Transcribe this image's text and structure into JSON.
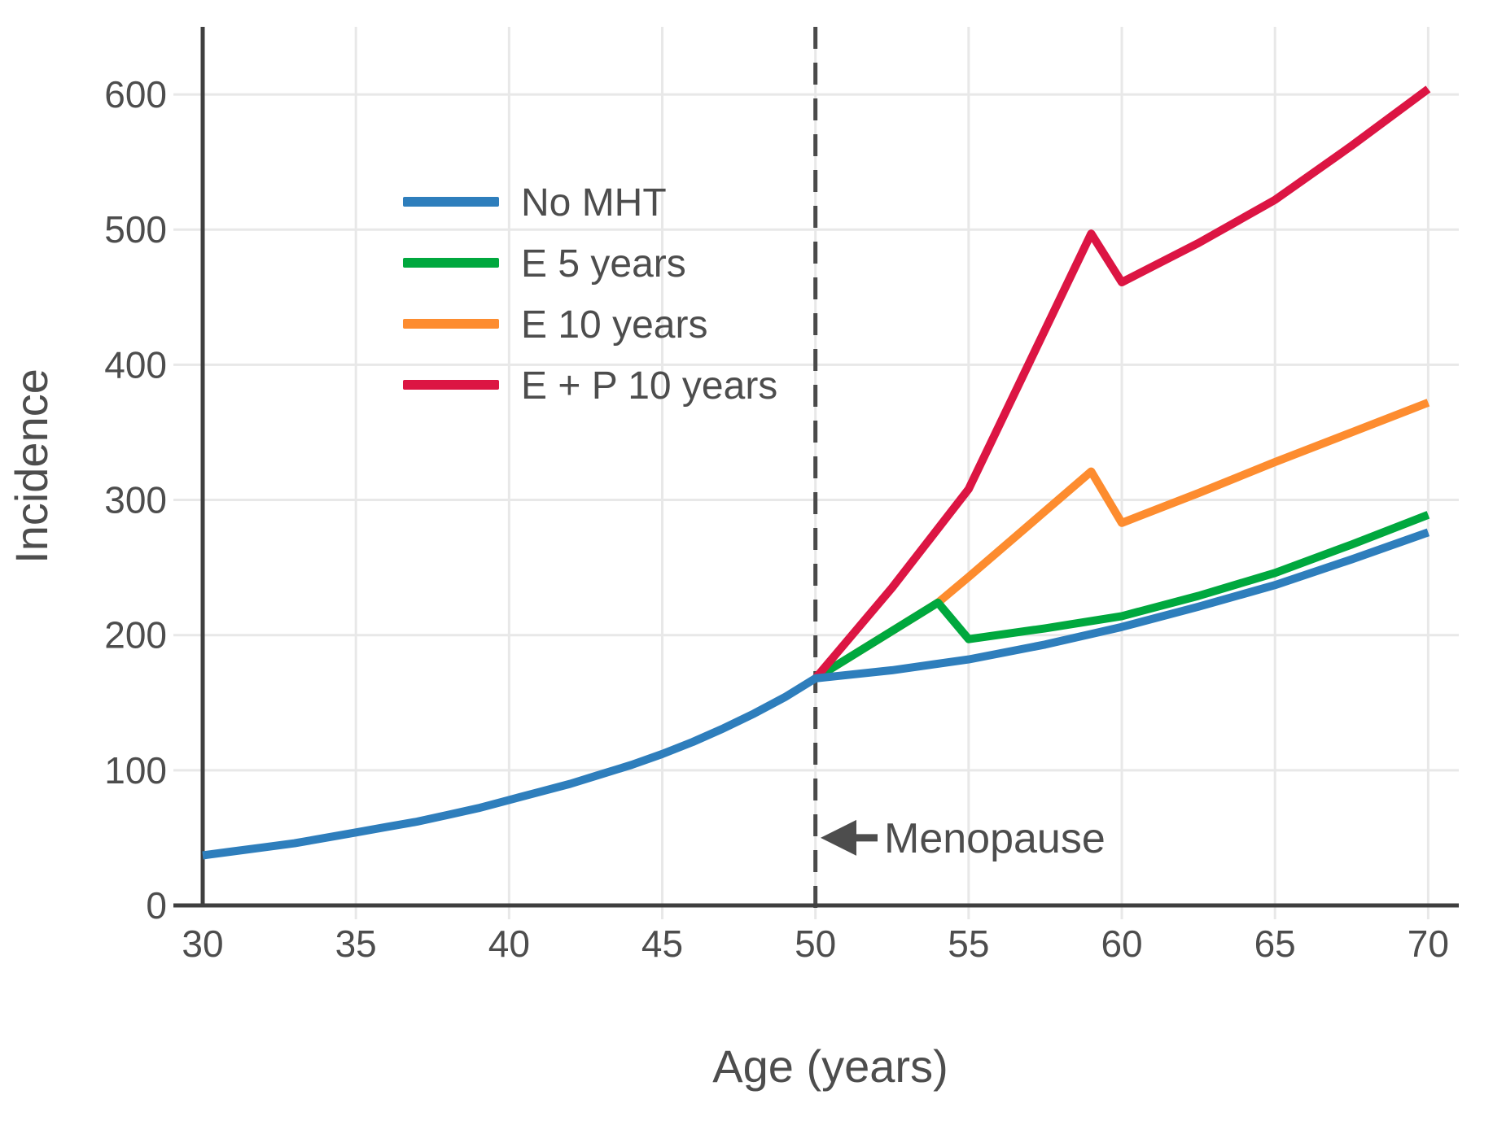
{
  "chart_data": {
    "type": "line",
    "title": "",
    "xlabel": "Age (years)",
    "ylabel": "Incidence",
    "xlim": [
      30,
      71
    ],
    "ylim": [
      0,
      650
    ],
    "xticks": [
      30,
      35,
      40,
      45,
      50,
      55,
      60,
      65,
      70
    ],
    "yticks": [
      0,
      100,
      200,
      300,
      400,
      500,
      600
    ],
    "grid": true,
    "legend_position": "upper left inside",
    "colors": {
      "grid": "#e8e8e8",
      "axis": "#3f3f3f",
      "text": "#4d4d4d",
      "dashed_line": "#4a4a4a"
    },
    "vline": {
      "x": 50,
      "style": "dashed"
    },
    "annotation": {
      "text": "Menopause",
      "arrow": "left-arrow-icon",
      "x": 50,
      "y": 50
    },
    "draw_order": [
      2,
      1,
      3,
      0
    ],
    "series": [
      {
        "name": "No MHT",
        "color": "#2e7ebc",
        "points": [
          [
            30,
            37
          ],
          [
            31,
            40
          ],
          [
            32,
            43
          ],
          [
            33,
            46
          ],
          [
            34,
            50
          ],
          [
            35,
            54
          ],
          [
            36,
            58
          ],
          [
            37,
            62
          ],
          [
            38,
            67
          ],
          [
            39,
            72
          ],
          [
            40,
            78
          ],
          [
            41,
            84
          ],
          [
            42,
            90
          ],
          [
            43,
            97
          ],
          [
            44,
            104
          ],
          [
            45,
            112
          ],
          [
            46,
            121
          ],
          [
            47,
            131
          ],
          [
            48,
            142
          ],
          [
            49,
            154
          ],
          [
            50,
            168
          ],
          [
            52.5,
            174
          ],
          [
            55,
            182
          ],
          [
            57.5,
            193
          ],
          [
            60,
            206
          ],
          [
            62.5,
            221
          ],
          [
            65,
            237
          ],
          [
            67.5,
            256
          ],
          [
            70,
            276
          ]
        ]
      },
      {
        "name": "E 5 years",
        "color": "#00a83e",
        "points": [
          [
            50,
            168
          ],
          [
            54,
            224
          ],
          [
            55,
            197
          ],
          [
            57.5,
            205
          ],
          [
            60,
            214
          ],
          [
            62.5,
            229
          ],
          [
            65,
            246
          ],
          [
            67.5,
            267
          ],
          [
            70,
            289
          ]
        ]
      },
      {
        "name": "E 10 years",
        "color": "#fd8c2f",
        "points": [
          [
            50,
            168
          ],
          [
            54,
            224
          ],
          [
            55,
            243
          ],
          [
            59,
            321
          ],
          [
            60,
            283
          ],
          [
            62.5,
            305
          ],
          [
            65,
            328
          ],
          [
            67.5,
            350
          ],
          [
            70,
            372
          ]
        ]
      },
      {
        "name": "E + P 10 years",
        "color": "#dc1543",
        "points": [
          [
            50,
            168
          ],
          [
            52.5,
            235
          ],
          [
            55,
            308
          ],
          [
            59,
            497
          ],
          [
            60,
            461
          ],
          [
            62.5,
            490
          ],
          [
            65,
            522
          ],
          [
            67.5,
            562
          ],
          [
            70,
            604
          ]
        ]
      }
    ]
  }
}
